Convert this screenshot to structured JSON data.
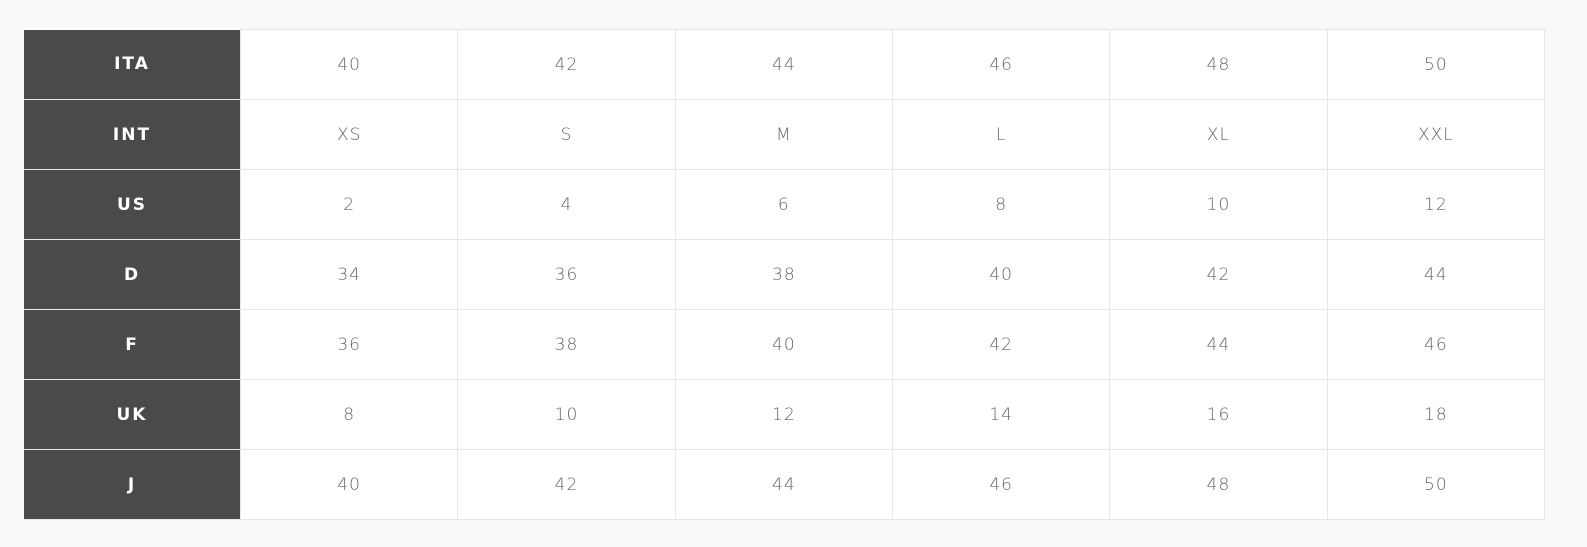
{
  "size_chart": {
    "rows": [
      {
        "label": "ITA",
        "values": [
          "40",
          "42",
          "44",
          "46",
          "48",
          "50"
        ]
      },
      {
        "label": "INT",
        "values": [
          "XS",
          "S",
          "M",
          "L",
          "XL",
          "XXL"
        ]
      },
      {
        "label": "US",
        "values": [
          "2",
          "4",
          "6",
          "8",
          "10",
          "12"
        ]
      },
      {
        "label": "D",
        "values": [
          "34",
          "36",
          "38",
          "40",
          "42",
          "44"
        ]
      },
      {
        "label": "F",
        "values": [
          "36",
          "38",
          "40",
          "42",
          "44",
          "46"
        ]
      },
      {
        "label": "UK",
        "values": [
          "8",
          "10",
          "12",
          "14",
          "16",
          "18"
        ]
      },
      {
        "label": "J",
        "values": [
          "40",
          "42",
          "44",
          "46",
          "48",
          "50"
        ]
      }
    ],
    "colors": {
      "header_bg": "#4a4a4a",
      "cell_text": "#666666",
      "border": "#e6e6e6"
    }
  }
}
